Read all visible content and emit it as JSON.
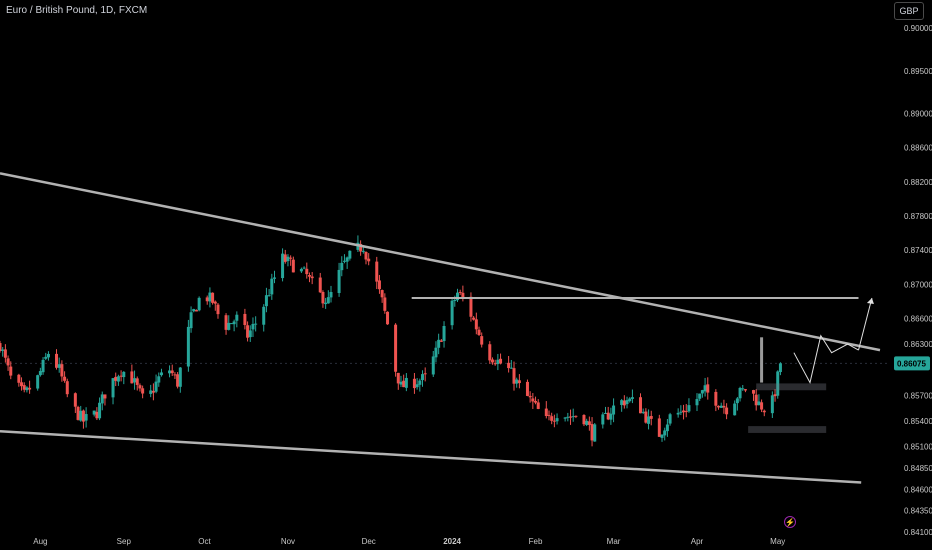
{
  "title": "Euro / British Pound, 1D, FXCM",
  "currency_button": "GBP",
  "events_icon": "lightning-icon",
  "colors": {
    "bull": "#26a69a",
    "bear": "#ef5350",
    "background": "#000000",
    "lines": "#b2b2b2",
    "last_price": "#26a69a"
  },
  "chart_data": {
    "type": "candlestick",
    "y_ticks": [
      "0.90000",
      "0.89500",
      "0.89000",
      "0.88600",
      "0.88200",
      "0.87800",
      "0.87400",
      "0.87000",
      "0.86600",
      "0.86300",
      "0.85700",
      "0.85400",
      "0.85100",
      "0.84850",
      "0.84600",
      "0.84350",
      "0.84100"
    ],
    "ylim": [
      0.841,
      0.9033
    ],
    "last_price": "0.86075",
    "x_labels": [
      {
        "label": "Aug",
        "date": "2023-08-01"
      },
      {
        "label": "Sep",
        "date": "2023-09-01"
      },
      {
        "label": "Oct",
        "date": "2023-10-01"
      },
      {
        "label": "Nov",
        "date": "2023-11-01"
      },
      {
        "label": "Dec",
        "date": "2023-12-01"
      },
      {
        "label": "2024",
        "date": "2024-01-01",
        "bold": true
      },
      {
        "label": "Feb",
        "date": "2024-02-01"
      },
      {
        "label": "Mar",
        "date": "2024-03-01"
      },
      {
        "label": "Apr",
        "date": "2024-04-01"
      },
      {
        "label": "May",
        "date": "2024-05-01"
      }
    ],
    "xlim": [
      "2023-07-17",
      "2024-06-08"
    ],
    "close_path": [
      [
        "2023-07-17",
        0.863
      ],
      [
        "2023-07-21",
        0.859
      ],
      [
        "2023-07-26",
        0.857
      ],
      [
        "2023-07-31",
        0.859
      ],
      [
        "2023-08-04",
        0.862
      ],
      [
        "2023-08-08",
        0.86
      ],
      [
        "2023-08-12",
        0.856
      ],
      [
        "2023-08-17",
        0.854
      ],
      [
        "2023-08-22",
        0.855
      ],
      [
        "2023-08-26",
        0.858
      ],
      [
        "2023-08-31",
        0.86
      ],
      [
        "2023-09-04",
        0.859
      ],
      [
        "2023-09-09",
        0.856
      ],
      [
        "2023-09-14",
        0.859
      ],
      [
        "2023-09-18",
        0.86
      ],
      [
        "2023-09-21",
        0.8585
      ],
      [
        "2023-09-26",
        0.866
      ],
      [
        "2023-09-30",
        0.869
      ],
      [
        "2023-10-04",
        0.868
      ],
      [
        "2023-10-08",
        0.865
      ],
      [
        "2023-10-13",
        0.866
      ],
      [
        "2023-10-17",
        0.864
      ],
      [
        "2023-10-21",
        0.866
      ],
      [
        "2023-10-26",
        0.87
      ],
      [
        "2023-10-30",
        0.873
      ],
      [
        "2023-11-04",
        0.872
      ],
      [
        "2023-11-08",
        0.871
      ],
      [
        "2023-11-12",
        0.869
      ],
      [
        "2023-11-16",
        0.868
      ],
      [
        "2023-11-21",
        0.872
      ],
      [
        "2023-11-26",
        0.874
      ],
      [
        "2023-11-29",
        0.8745
      ],
      [
        "2023-12-03",
        0.871
      ],
      [
        "2023-12-06",
        0.868
      ],
      [
        "2023-12-09",
        0.864
      ],
      [
        "2023-12-11",
        0.86
      ],
      [
        "2023-12-13",
        0.858
      ],
      [
        "2023-12-17",
        0.8585
      ],
      [
        "2023-12-22",
        0.859
      ],
      [
        "2023-12-26",
        0.862
      ],
      [
        "2023-12-30",
        0.866
      ],
      [
        "2024-01-03",
        0.869
      ],
      [
        "2024-01-06",
        0.868
      ],
      [
        "2024-01-10",
        0.865
      ],
      [
        "2024-01-14",
        0.862
      ],
      [
        "2024-01-18",
        0.861
      ],
      [
        "2024-01-22",
        0.86
      ],
      [
        "2024-01-26",
        0.858
      ],
      [
        "2024-01-31",
        0.856
      ],
      [
        "2024-02-05",
        0.854
      ],
      [
        "2024-02-09",
        0.855
      ],
      [
        "2024-02-14",
        0.8545
      ],
      [
        "2024-02-18",
        0.855
      ],
      [
        "2024-02-22",
        0.8525
      ],
      [
        "2024-02-26",
        0.854
      ],
      [
        "2024-03-02",
        0.856
      ],
      [
        "2024-03-06",
        0.8565
      ],
      [
        "2024-03-10",
        0.856
      ],
      [
        "2024-03-14",
        0.854
      ],
      [
        "2024-03-18",
        0.8525
      ],
      [
        "2024-03-22",
        0.8545
      ],
      [
        "2024-03-26",
        0.855
      ],
      [
        "2024-03-30",
        0.856
      ],
      [
        "2024-04-04",
        0.8575
      ],
      [
        "2024-04-08",
        0.8565
      ],
      [
        "2024-04-12",
        0.8555
      ],
      [
        "2024-04-16",
        0.857
      ],
      [
        "2024-04-20",
        0.858
      ],
      [
        "2024-04-24",
        0.856
      ],
      [
        "2024-04-28",
        0.855
      ],
      [
        "2024-04-30",
        0.8575
      ],
      [
        "2024-05-02",
        0.8607
      ]
    ],
    "drawings": {
      "upper_trendline": [
        [
          "2023-07-17",
          0.883
        ],
        [
          "2024-06-08",
          0.8623
        ]
      ],
      "lower_trendline": [
        [
          "2023-07-17",
          0.8528
        ],
        [
          "2024-06-01",
          0.8468
        ]
      ],
      "horizontal_level": [
        [
          "2023-12-17",
          0.8684
        ],
        [
          "2024-05-31",
          0.8684
        ]
      ],
      "zigzag_projection": [
        [
          "2024-05-07",
          0.862
        ],
        [
          "2024-05-13",
          0.8585
        ],
        [
          "2024-05-17",
          0.864
        ],
        [
          "2024-05-21",
          0.862
        ],
        [
          "2024-05-27",
          0.863
        ],
        [
          "2024-05-31",
          0.8623
        ]
      ],
      "arrow_projection": [
        [
          "2024-05-31",
          0.8623
        ],
        [
          "2024-06-05",
          0.8684
        ]
      ],
      "range_boxes": [
        [
          [
            "2024-04-23",
            0.8584
          ],
          [
            "2024-05-19",
            0.8576
          ]
        ],
        [
          [
            "2024-04-20",
            0.8534
          ],
          [
            "2024-05-19",
            0.8526
          ]
        ]
      ]
    }
  }
}
